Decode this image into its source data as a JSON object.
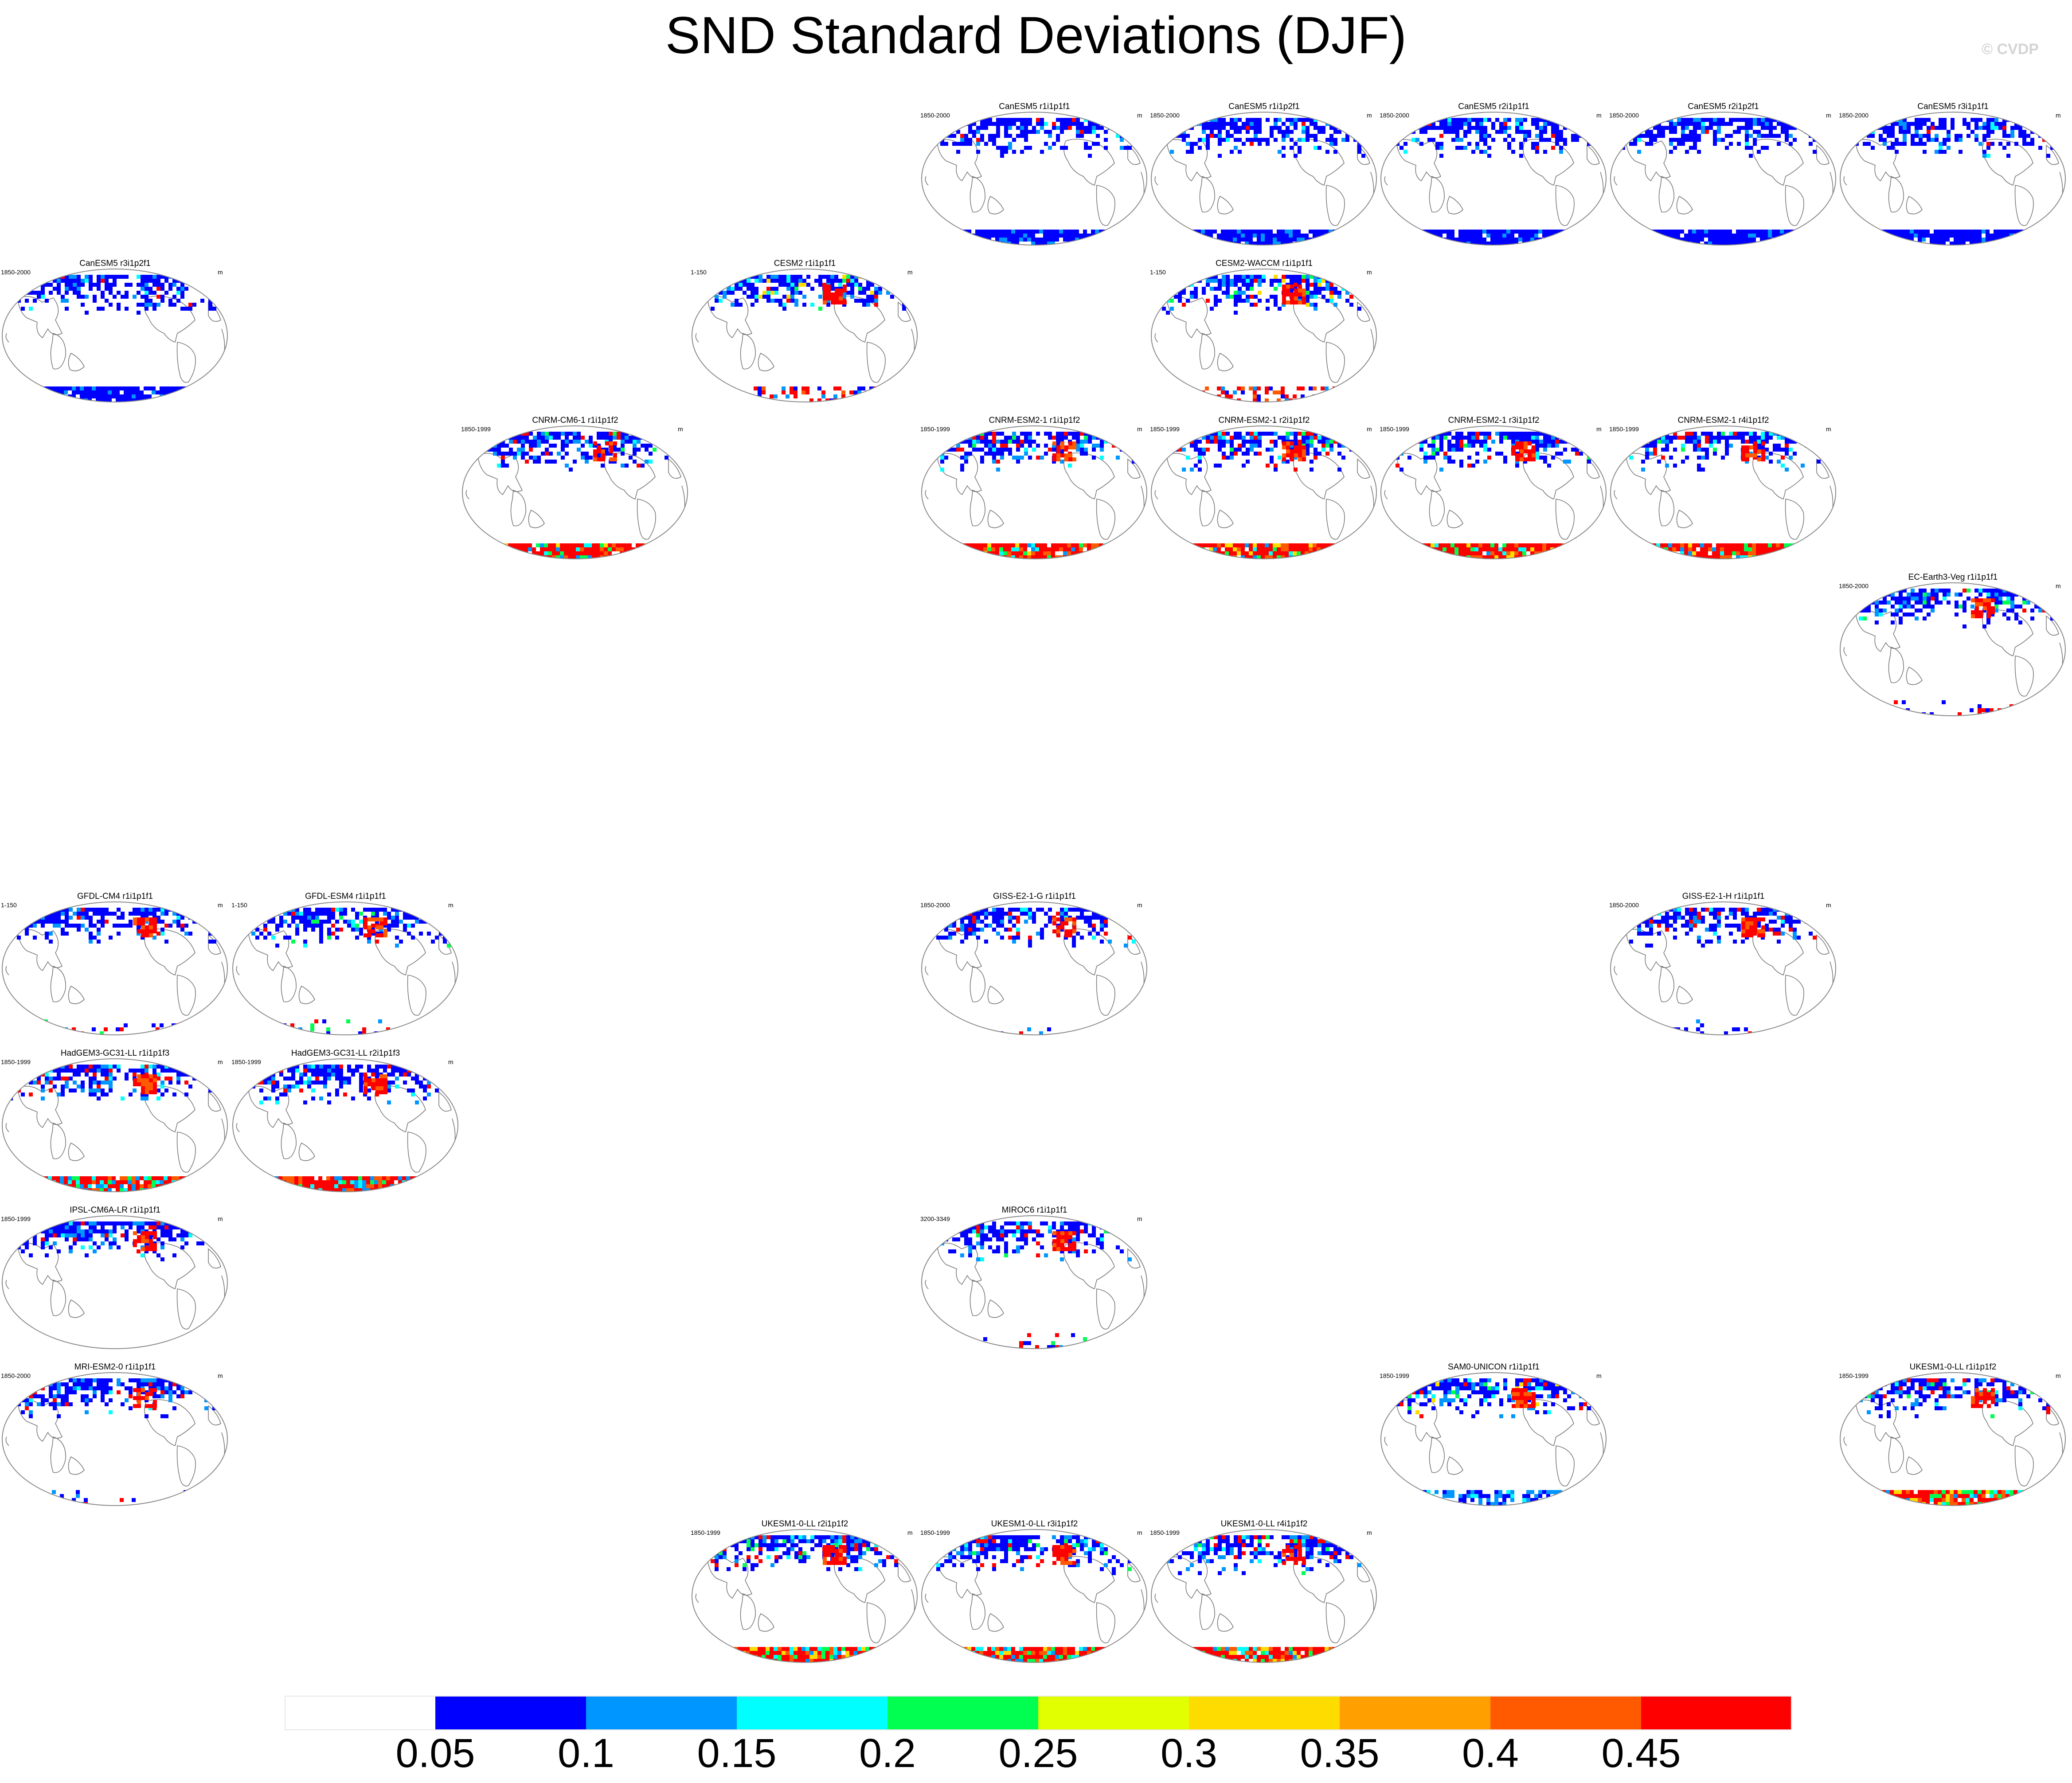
{
  "title": "SND Standard Deviations (DJF)",
  "watermark": "© CVDP",
  "units": "m",
  "panels": [
    {
      "title": "CanESM5 r1i1p1f1",
      "years": "1850-2000",
      "style": "canesm"
    },
    {
      "title": "CanESM5 r1i1p2f1",
      "years": "1850-2000",
      "style": "canesm"
    },
    {
      "title": "CanESM5 r2i1p1f1",
      "years": "1850-2000",
      "style": "canesm"
    },
    {
      "title": "CanESM5 r2i1p2f1",
      "years": "1850-2000",
      "style": "canesm"
    },
    {
      "title": "CanESM5 r3i1p1f1",
      "years": "1850-2000",
      "style": "canesm"
    },
    {
      "title": "CanESM5 r3i1p2f1",
      "years": "1850-2000",
      "style": "canesm"
    },
    {
      "title": "CESM2 r1i1p1f1",
      "years": "1-150",
      "style": "cesm"
    },
    {
      "title": "CESM2-WACCM r1i1p1f1",
      "years": "1-150",
      "style": "cesm"
    },
    {
      "title": "CNRM-CM6-1 r1i1p1f2",
      "years": "1850-1999",
      "style": "cnrm"
    },
    {
      "title": "CNRM-ESM2-1 r1i1p1f2",
      "years": "1850-1999",
      "style": "cnrm"
    },
    {
      "title": "CNRM-ESM2-1 r2i1p1f2",
      "years": "1850-1999",
      "style": "cnrm"
    },
    {
      "title": "CNRM-ESM2-1 r3i1p1f2",
      "years": "1850-1999",
      "style": "cnrm"
    },
    {
      "title": "CNRM-ESM2-1 r4i1p1f2",
      "years": "1850-1999",
      "style": "cnrm"
    },
    {
      "title": "EC-Earth3-Veg r1i1p1f1",
      "years": "1850-2000",
      "style": "sparse"
    },
    {
      "title": "GFDL-CM4 r1i1p1f1",
      "years": "1-150",
      "style": "sparse"
    },
    {
      "title": "GFDL-ESM4 r1i1p1f1",
      "years": "1-150",
      "style": "sparse"
    },
    {
      "title": "GISS-E2-1-G r1i1p1f1",
      "years": "1850-2000",
      "style": "giss"
    },
    {
      "title": "GISS-E2-1-H r1i1p1f1",
      "years": "1850-2000",
      "style": "giss"
    },
    {
      "title": "HadGEM3-GC31-LL r1i1p1f3",
      "years": "1850-1999",
      "style": "hadgem"
    },
    {
      "title": "HadGEM3-GC31-LL r2i1p1f3",
      "years": "1850-1999",
      "style": "hadgem"
    },
    {
      "title": "IPSL-CM6A-LR r1i1p1f1",
      "years": "1850-1999",
      "style": "none"
    },
    {
      "title": "MIROC6 r1i1p1f1",
      "years": "3200-3349",
      "style": "sparse"
    },
    {
      "title": "MRI-ESM2-0 r1i1p1f1",
      "years": "1850-2000",
      "style": "giss"
    },
    {
      "title": "SAM0-UNICON r1i1p1f1",
      "years": "1850-1999",
      "style": "sam"
    },
    {
      "title": "UKESM1-0-LL r1i1p1f2",
      "years": "1850-1999",
      "style": "ukesm"
    },
    {
      "title": "UKESM1-0-LL r2i1p1f2",
      "years": "1850-1999",
      "style": "ukesm"
    },
    {
      "title": "UKESM1-0-LL r3i1p1f2",
      "years": "1850-1999",
      "style": "ukesm"
    },
    {
      "title": "UKESM1-0-LL r4i1p1f2",
      "years": "1850-1999",
      "style": "ukesm"
    }
  ],
  "colorbar": {
    "colors": [
      "#ffffff",
      "#0000ff",
      "#0096ff",
      "#00ffff",
      "#00ff50",
      "#e1ff00",
      "#ffdc00",
      "#ffa000",
      "#ff5a00",
      "#ff0000"
    ],
    "labels": [
      "0.05",
      "0.1",
      "0.15",
      "0.2",
      "0.25",
      "0.3",
      "0.35",
      "0.4",
      "0.45"
    ]
  }
}
